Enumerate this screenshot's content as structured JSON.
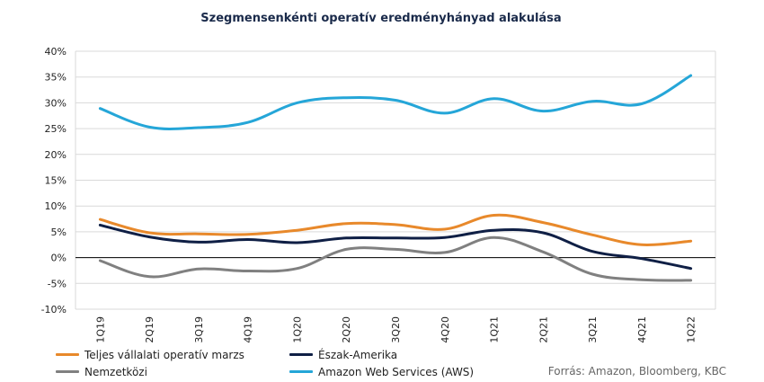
{
  "chart_data": {
    "type": "line",
    "title": "Szegmensenkénti operatív eredményhányad alakulása",
    "categories": [
      "1Q19",
      "2Q19",
      "3Q19",
      "4Q19",
      "1Q20",
      "2Q20",
      "3Q20",
      "4Q20",
      "1Q21",
      "2Q21",
      "3Q21",
      "4Q21",
      "1Q22"
    ],
    "yticks": [
      "40%",
      "35%",
      "30%",
      "25%",
      "20%",
      "15%",
      "10%",
      "5%",
      "0%",
      "-5%",
      "-10%"
    ],
    "ylim": [
      -10,
      40
    ],
    "grid": true,
    "legend_position": "bottom",
    "series": [
      {
        "name": "Teljes vállalati operatív marzs",
        "color": "#e8892b",
        "values": [
          7.4,
          4.8,
          4.6,
          4.5,
          5.3,
          6.6,
          6.4,
          5.5,
          8.2,
          6.8,
          4.4,
          2.5,
          3.2
        ]
      },
      {
        "name": "Észak-Amerika",
        "color": "#0f1f45",
        "values": [
          6.3,
          4.0,
          3.0,
          3.5,
          2.9,
          3.8,
          3.8,
          3.9,
          5.3,
          4.8,
          1.2,
          -0.2,
          -2.1
        ]
      },
      {
        "name": "Nemzetközi",
        "color": "#808080",
        "values": [
          -0.6,
          -3.7,
          -2.2,
          -2.6,
          -2.1,
          1.6,
          1.6,
          1.0,
          3.9,
          1.1,
          -3.2,
          -4.3,
          -4.4
        ]
      },
      {
        "name": "Amazon Web Services (AWS)",
        "color": "#25a6d8",
        "values": [
          28.9,
          25.3,
          25.2,
          26.2,
          30.0,
          31.0,
          30.5,
          28.0,
          30.8,
          28.4,
          30.3,
          29.8,
          35.3
        ]
      }
    ]
  },
  "source": "Forrás: Amazon, Bloomberg,  KBC"
}
